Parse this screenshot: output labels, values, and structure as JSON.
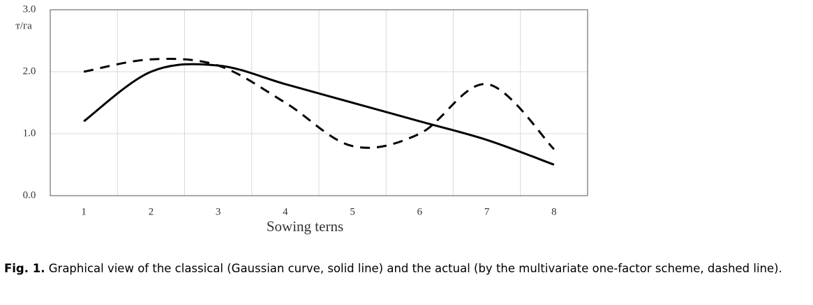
{
  "chart_data": {
    "type": "line",
    "ylabel": "т/га",
    "xlabel": "Sowing terns",
    "categories": [
      "1",
      "2",
      "3",
      "4",
      "5",
      "6",
      "7",
      "8"
    ],
    "series": [
      {
        "color": "#000000",
        "dash": false,
        "values": [
          1.2,
          2.0,
          2.1,
          1.8,
          1.5,
          1.2,
          0.9,
          0.5
        ]
      },
      {
        "color": "#000000",
        "dash": true,
        "values": [
          2.0,
          2.2,
          2.1,
          1.5,
          0.8,
          1.0,
          1.8,
          0.75
        ]
      }
    ],
    "ylim": [
      0,
      3
    ],
    "yticks": [
      {
        "value": 0,
        "label": "0.0"
      },
      {
        "value": 1,
        "label": "1.0"
      },
      {
        "value": 2,
        "label": "2.0"
      },
      {
        "value": 3,
        "label": "3.0"
      }
    ],
    "grid": true
  },
  "caption": {
    "label": "Fig. 1.",
    "text": "Graphical view of the classical (Gaussian curve, solid line) and the actual (by the multivariate one-factor scheme, dashed line)."
  }
}
